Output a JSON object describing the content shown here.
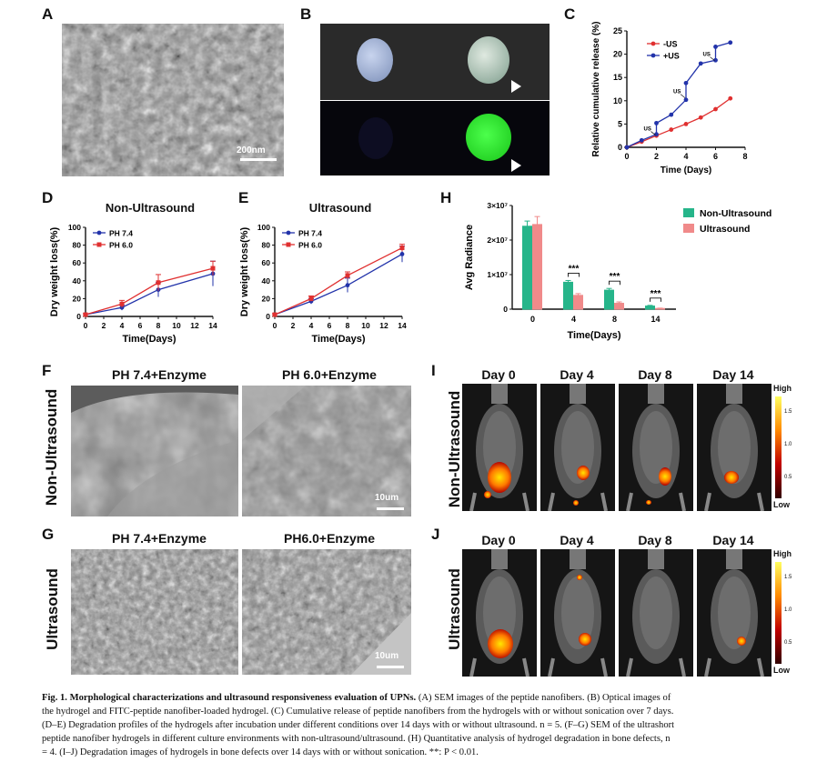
{
  "panels": {
    "A": {
      "label": "A",
      "scale": "200nm"
    },
    "B": {
      "label": "B"
    },
    "C": {
      "label": "C"
    },
    "D": {
      "label": "D",
      "title": "Non-Ultrasound"
    },
    "E": {
      "label": "E",
      "title": "Ultrasound"
    },
    "H": {
      "label": "H"
    },
    "F": {
      "label": "F",
      "row_label": "Non-Ultrasound",
      "col1": "PH 7.4+Enzyme",
      "col2": "PH 6.0+Enzyme",
      "scale": "10um"
    },
    "G": {
      "label": "G",
      "row_label": "Ultrasound",
      "col1": "PH 7.4+Enzyme",
      "col2": "PH6.0+Enzyme",
      "scale": "10um"
    },
    "I": {
      "label": "I",
      "row_label": "Non-Ultrasound",
      "days": [
        "Day 0",
        "Day 4",
        "Day 8",
        "Day 14"
      ],
      "high": "High",
      "low": "Low",
      "ticks": [
        "1.5",
        "1.0",
        "0.5"
      ]
    },
    "J": {
      "label": "J",
      "row_label": "Ultrasound",
      "days": [
        "Day 0",
        "Day 4",
        "Day 8",
        "Day 14"
      ],
      "high": "High",
      "low": "Low",
      "ticks": [
        "1.5",
        "1.0",
        "0.5"
      ]
    }
  },
  "chart_data": [
    {
      "id": "C",
      "type": "line",
      "xlabel": "Time (Days)",
      "ylabel": "Relative cumulative release (%)",
      "xlim": [
        0,
        8
      ],
      "ylim": [
        0,
        25
      ],
      "xticks": [
        "0",
        "2",
        "4",
        "6",
        "8"
      ],
      "yticks": [
        "0",
        "5",
        "10",
        "15",
        "20",
        "25"
      ],
      "legend": "top-left",
      "annotations": [
        "US",
        "US",
        "US"
      ],
      "series": [
        {
          "name": "-US",
          "color": "#e03030",
          "x": [
            0,
            1,
            2,
            3,
            4,
            5,
            6,
            7
          ],
          "y": [
            0,
            1.2,
            2.5,
            3.8,
            5.0,
            6.4,
            8.2,
            10.5
          ]
        },
        {
          "name": "+US",
          "color": "#2233aa",
          "x": [
            0,
            1,
            2,
            2,
            3,
            4,
            4,
            5,
            6,
            6,
            7
          ],
          "y": [
            0,
            1.5,
            2.8,
            5.2,
            7.0,
            10.2,
            13.8,
            18.0,
            18.7,
            21.6,
            22.5
          ]
        }
      ]
    },
    {
      "id": "D",
      "type": "line",
      "title": "Non-Ultrasound",
      "xlabel": "Time(Days)",
      "ylabel": "Dry weight loss(%)",
      "xlim": [
        0,
        14
      ],
      "ylim": [
        0,
        100
      ],
      "xticks": [
        "0",
        "2",
        "4",
        "6",
        "8",
        "10",
        "12",
        "14"
      ],
      "yticks": [
        "0",
        "20",
        "40",
        "60",
        "80",
        "100"
      ],
      "legend": "top-left",
      "series": [
        {
          "name": "PH 7.4",
          "color": "#2233aa",
          "x": [
            0,
            4,
            8,
            14
          ],
          "y": [
            2,
            10,
            30,
            48
          ],
          "err": [
            1,
            3,
            8,
            14
          ]
        },
        {
          "name": "PH 6.0",
          "color": "#e03030",
          "x": [
            0,
            4,
            8,
            14
          ],
          "y": [
            2,
            14,
            38,
            54
          ],
          "err": [
            1,
            4,
            9,
            8
          ]
        }
      ]
    },
    {
      "id": "E",
      "type": "line",
      "title": "Ultrasound",
      "xlabel": "Time(Days)",
      "ylabel": "Dry weight loss(%)",
      "xlim": [
        0,
        14
      ],
      "ylim": [
        0,
        100
      ],
      "xticks": [
        "0",
        "2",
        "4",
        "6",
        "8",
        "10",
        "12",
        "14"
      ],
      "yticks": [
        "0",
        "20",
        "40",
        "60",
        "80",
        "100"
      ],
      "legend": "top-left",
      "series": [
        {
          "name": "PH 7.4",
          "color": "#2233aa",
          "x": [
            0,
            4,
            8,
            14
          ],
          "y": [
            2,
            17,
            35,
            70
          ],
          "err": [
            1,
            3,
            8,
            9
          ]
        },
        {
          "name": "PH 6.0",
          "color": "#e03030",
          "x": [
            0,
            4,
            8,
            14
          ],
          "y": [
            2,
            20,
            46,
            77
          ],
          "err": [
            1,
            3,
            4,
            4
          ]
        }
      ]
    },
    {
      "id": "H",
      "type": "bar",
      "xlabel": "Time(Days)",
      "ylabel": "Avg Radiance",
      "categories": [
        "0",
        "4",
        "8",
        "14"
      ],
      "ylim": [
        0,
        30000000
      ],
      "yticks": [
        "0",
        "1×10⁷",
        "2×10⁷",
        "3×10⁷"
      ],
      "legend": "top-right",
      "significance": [
        "***",
        "***",
        "***"
      ],
      "series": [
        {
          "name": "Non-Ultrasound",
          "color": "#26b58a",
          "values": [
            24000000,
            7800000,
            5500000,
            900000
          ],
          "err": [
            1500000,
            500000,
            500000,
            200000
          ]
        },
        {
          "name": "Ultrasound",
          "color": "#f08a8a",
          "values": [
            24500000,
            4000000,
            1700000,
            200000
          ],
          "err": [
            2300000,
            500000,
            400000,
            100000
          ]
        }
      ]
    }
  ],
  "caption": {
    "lead": "Fig. 1.  Morphological characterizations and ultrasound responsiveness evaluation of UPNs.",
    "lines": [
      " (A) SEM images of the peptide nanofibers. (B) Optical images of",
      "the hydrogel and FITC-peptide nanofiber-loaded hydrogel. (C) Cumulative release of peptide nanofibers from the hydrogels with or without sonication over 7 days.",
      "(D–E) Degradation profiles of the hydrogels after incubation under different conditions over 14 days with or without ultrasound. n = 5. (F–G) SEM of the ultrashort",
      "peptide nanofiber hydrogels in different culture environments with non-ultrasound/ultrasound. (H) Quantitative analysis of hydrogel degradation in bone defects, n",
      "= 4. (I–J) Degradation images of hydrogels in bone defects over 14 days with or without sonication. **: P < 0.01."
    ]
  }
}
